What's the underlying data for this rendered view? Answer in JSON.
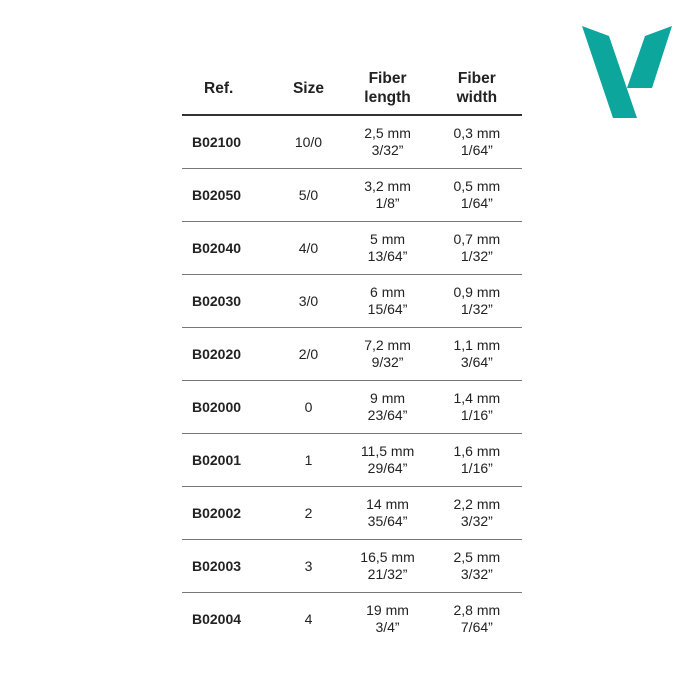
{
  "brand": {
    "logo_letter": "V",
    "color": "#0ca69c"
  },
  "table": {
    "headers": [
      {
        "line1": "Ref.",
        "line2": ""
      },
      {
        "line1": "Size",
        "line2": ""
      },
      {
        "line1": "Fiber",
        "line2": "length"
      },
      {
        "line1": "Fiber",
        "line2": "width"
      }
    ],
    "rows": [
      {
        "ref": "B02100",
        "size": "10/0",
        "length_mm": "2,5 mm",
        "length_in": "3/32”",
        "width_mm": "0,3 mm",
        "width_in": "1/64”"
      },
      {
        "ref": "B02050",
        "size": "5/0",
        "length_mm": "3,2 mm",
        "length_in": "1/8”",
        "width_mm": "0,5 mm",
        "width_in": "1/64”"
      },
      {
        "ref": "B02040",
        "size": "4/0",
        "length_mm": "5 mm",
        "length_in": "13/64”",
        "width_mm": "0,7 mm",
        "width_in": "1/32”"
      },
      {
        "ref": "B02030",
        "size": "3/0",
        "length_mm": "6 mm",
        "length_in": "15/64”",
        "width_mm": "0,9 mm",
        "width_in": "1/32”"
      },
      {
        "ref": "B02020",
        "size": "2/0",
        "length_mm": "7,2 mm",
        "length_in": "9/32”",
        "width_mm": "1,1 mm",
        "width_in": "3/64”"
      },
      {
        "ref": "B02000",
        "size": "0",
        "length_mm": "9 mm",
        "length_in": "23/64”",
        "width_mm": "1,4 mm",
        "width_in": "1/16”"
      },
      {
        "ref": "B02001",
        "size": "1",
        "length_mm": "11,5 mm",
        "length_in": "29/64”",
        "width_mm": "1,6 mm",
        "width_in": "1/16”"
      },
      {
        "ref": "B02002",
        "size": "2",
        "length_mm": "14 mm",
        "length_in": "35/64”",
        "width_mm": "2,2 mm",
        "width_in": "3/32”"
      },
      {
        "ref": "B02003",
        "size": "3",
        "length_mm": "16,5 mm",
        "length_in": "21/32”",
        "width_mm": "2,5 mm",
        "width_in": "3/32”"
      },
      {
        "ref": "B02004",
        "size": "4",
        "length_mm": "19 mm",
        "length_in": "3/4”",
        "width_mm": "2,8 mm",
        "width_in": "7/64”"
      }
    ]
  }
}
